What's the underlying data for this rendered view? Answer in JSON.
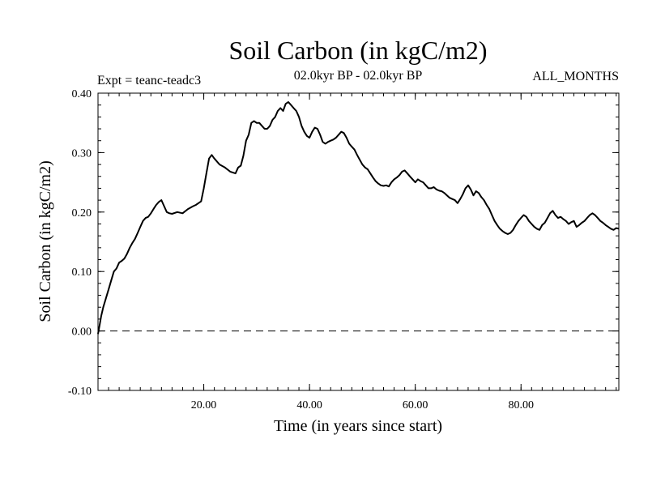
{
  "chart_data": {
    "type": "line",
    "title": "Soil Carbon (in kgC/m2)",
    "subtitle": "02.0kyr BP - 02.0kyr BP",
    "expt_label": "Expt = teanc-teadc3",
    "months_label": "ALL_MONTHS",
    "xlabel": "Time (in years since start)",
    "ylabel": "Soil Carbon (in kgC/m2)",
    "xlim": [
      0,
      98.5
    ],
    "ylim": [
      -0.1,
      0.4
    ],
    "xticks": [
      "20.00",
      "40.00",
      "60.00",
      "80.00"
    ],
    "yticks": [
      "-0.10",
      "0.00",
      "0.10",
      "0.20",
      "0.30",
      "0.40"
    ],
    "zero_line": "dashed",
    "grid": false,
    "series": [
      {
        "x": [
          0,
          0.3,
          0.6,
          1,
          1.5,
          2,
          2.5,
          3,
          3.5,
          4,
          4.5,
          5,
          5.5,
          6,
          6.5,
          7,
          7.5,
          8,
          8.5,
          9,
          9.5,
          10,
          10.5,
          11,
          11.5,
          12,
          12.5,
          13,
          13.5,
          14,
          15,
          16,
          17,
          18,
          18.5,
          19,
          19.5,
          20,
          20.5,
          21,
          21.5,
          22,
          23,
          24,
          25,
          26,
          26.5,
          27,
          27.5,
          28,
          28.5,
          29,
          29.5,
          30,
          30.5,
          31,
          31.5,
          32,
          32.5,
          33,
          33.5,
          34,
          34.5,
          35,
          35.5,
          36,
          36.5,
          37,
          37.5,
          38,
          38.5,
          39,
          39.5,
          40,
          40.5,
          41,
          41.5,
          42,
          42.5,
          43,
          43.5,
          44,
          44.5,
          45,
          45.5,
          46,
          46.5,
          47,
          47.5,
          48,
          48.5,
          49,
          49.5,
          50,
          50.5,
          51,
          51.5,
          52,
          52.5,
          53,
          53.5,
          54,
          54.5,
          55,
          55.5,
          56,
          56.5,
          57,
          57.5,
          58,
          58.5,
          59,
          59.5,
          60,
          60.5,
          61,
          61.5,
          62,
          62.5,
          63,
          63.5,
          64,
          64.5,
          65,
          65.5,
          66,
          66.5,
          67,
          67.5,
          68,
          68.5,
          69,
          69.5,
          70,
          70.5,
          71,
          71.5,
          72,
          72.5,
          73,
          73.5,
          74,
          74.5,
          75,
          75.5,
          76,
          76.5,
          77,
          77.5,
          78,
          78.5,
          79,
          79.5,
          80,
          80.5,
          81,
          81.5,
          82,
          82.5,
          83,
          83.5,
          84,
          84.5,
          85,
          85.5,
          86,
          86.5,
          87,
          87.5,
          88,
          88.5,
          89,
          89.5,
          90,
          90.5,
          91,
          91.5,
          92,
          92.5,
          93,
          93.5,
          94,
          94.5,
          95,
          95.5,
          96,
          96.5,
          97,
          97.5,
          98,
          98.5
        ],
        "values": [
          -0.005,
          0.01,
          0.025,
          0.04,
          0.055,
          0.07,
          0.085,
          0.1,
          0.105,
          0.115,
          0.118,
          0.122,
          0.13,
          0.14,
          0.148,
          0.155,
          0.165,
          0.175,
          0.185,
          0.19,
          0.192,
          0.198,
          0.205,
          0.212,
          0.217,
          0.22,
          0.21,
          0.2,
          0.198,
          0.197,
          0.2,
          0.198,
          0.205,
          0.21,
          0.212,
          0.215,
          0.218,
          0.24,
          0.265,
          0.29,
          0.296,
          0.29,
          0.28,
          0.275,
          0.268,
          0.265,
          0.275,
          0.278,
          0.295,
          0.32,
          0.33,
          0.35,
          0.353,
          0.35,
          0.35,
          0.345,
          0.34,
          0.34,
          0.345,
          0.355,
          0.36,
          0.37,
          0.375,
          0.37,
          0.382,
          0.385,
          0.38,
          0.375,
          0.37,
          0.36,
          0.345,
          0.335,
          0.328,
          0.325,
          0.335,
          0.342,
          0.34,
          0.33,
          0.318,
          0.315,
          0.318,
          0.32,
          0.322,
          0.325,
          0.33,
          0.335,
          0.333,
          0.325,
          0.315,
          0.31,
          0.305,
          0.296,
          0.288,
          0.28,
          0.275,
          0.272,
          0.265,
          0.258,
          0.252,
          0.248,
          0.245,
          0.244,
          0.245,
          0.243,
          0.25,
          0.255,
          0.258,
          0.262,
          0.268,
          0.27,
          0.265,
          0.26,
          0.255,
          0.25,
          0.255,
          0.252,
          0.25,
          0.245,
          0.24,
          0.24,
          0.242,
          0.238,
          0.236,
          0.235,
          0.232,
          0.228,
          0.224,
          0.222,
          0.22,
          0.215,
          0.222,
          0.23,
          0.24,
          0.245,
          0.238,
          0.228,
          0.235,
          0.232,
          0.225,
          0.22,
          0.212,
          0.205,
          0.195,
          0.185,
          0.178,
          0.172,
          0.168,
          0.165,
          0.163,
          0.165,
          0.17,
          0.178,
          0.185,
          0.19,
          0.195,
          0.192,
          0.185,
          0.18,
          0.175,
          0.172,
          0.17,
          0.178,
          0.182,
          0.19,
          0.198,
          0.202,
          0.195,
          0.19,
          0.192,
          0.188,
          0.185,
          0.18,
          0.183,
          0.185,
          0.175,
          0.178,
          0.182,
          0.185,
          0.19,
          0.195,
          0.198,
          0.195,
          0.19,
          0.185,
          0.182,
          0.178,
          0.175,
          0.172,
          0.17,
          0.173,
          0.172
        ]
      }
    ]
  }
}
